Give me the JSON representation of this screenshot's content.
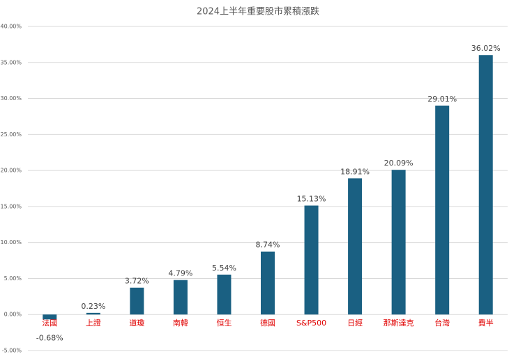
{
  "chart_data": {
    "type": "bar",
    "title": "2024上半年重要股市累積漲跌",
    "categories": [
      "法國",
      "上證",
      "道瓊",
      "南韓",
      "恒生",
      "德國",
      "S&P500",
      "日經",
      "那斯達克",
      "台灣",
      "費半"
    ],
    "values": [
      -0.68,
      0.23,
      3.72,
      4.79,
      5.54,
      8.74,
      15.13,
      18.91,
      20.09,
      29.01,
      36.02
    ],
    "value_labels": [
      "-0.68%",
      "0.23%",
      "3.72%",
      "4.79%",
      "5.54%",
      "8.74%",
      "15.13%",
      "18.91%",
      "20.09%",
      "29.01%",
      "36.02%"
    ],
    "color": "#1a6082",
    "category_label_color": "#e00000",
    "ylim": [
      -5,
      40
    ],
    "yticks": [
      {
        "value": -5,
        "label": "-5.00%"
      },
      {
        "value": 0,
        "label": "0.00%"
      },
      {
        "value": 5,
        "label": "5.00%"
      },
      {
        "value": 10,
        "label": "10.00%"
      },
      {
        "value": 15,
        "label": "15.00%"
      },
      {
        "value": 20,
        "label": "20.00%"
      },
      {
        "value": 25,
        "label": "25.00%"
      },
      {
        "value": 30,
        "label": "30.00%"
      },
      {
        "value": 35,
        "label": "35.00%"
      },
      {
        "value": 40,
        "label": "40.00%"
      }
    ],
    "grid": true
  }
}
